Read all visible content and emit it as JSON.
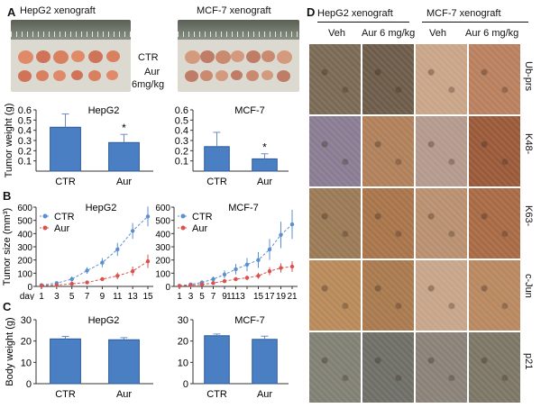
{
  "panel_a": {
    "letter": "A",
    "photo_left_title": "HepG2 xenograft",
    "photo_right_title": "MCF-7 xenograft",
    "row_label_ctr": "CTR",
    "row_label_aur_1": "Aur",
    "row_label_aur_2": "6mg/kg"
  },
  "panel_b": {
    "letter": "B"
  },
  "panel_c": {
    "letter": "C"
  },
  "panel_d": {
    "letter": "D",
    "group1": "HepG2 xenograft",
    "group2": "MCF-7 xenograft",
    "columns": [
      "Veh",
      "Aur 6 mg/kg",
      "Veh",
      "Aur 6 mg/kg"
    ],
    "rows": [
      "Ub-prs",
      "K48-",
      "K63-",
      "c-Jun",
      "p21"
    ]
  },
  "chart_data": [
    {
      "type": "bar",
      "title": "HepG2",
      "ylabel": "Tumor weight (g)",
      "categories": [
        "CTR",
        "Aur"
      ],
      "values": [
        0.43,
        0.28
      ],
      "errors": [
        0.13,
        0.08
      ],
      "annotations": [
        "",
        "*"
      ],
      "ylim": [
        0,
        0.6
      ],
      "yticks": [
        "0.1",
        "0.2",
        "0.3",
        "0.4",
        "0.5",
        "0.6"
      ]
    },
    {
      "type": "bar",
      "title": "MCF-7",
      "ylabel": "",
      "categories": [
        "CTR",
        "Aur"
      ],
      "values": [
        0.24,
        0.12
      ],
      "errors": [
        0.14,
        0.05
      ],
      "annotations": [
        "",
        "*"
      ],
      "ylim": [
        0,
        0.6
      ],
      "yticks": [
        "0.1",
        "0.2",
        "0.3",
        "0.4",
        "0.5",
        "0.6"
      ]
    },
    {
      "type": "line",
      "title": "HepG2",
      "ylabel": "Tumor size (mm³)",
      "xlabel_prefix": "day",
      "x": [
        1,
        3,
        5,
        7,
        9,
        11,
        13,
        15
      ],
      "ylim": [
        0,
        600
      ],
      "yticks": [
        "0",
        "100",
        "200",
        "300",
        "400",
        "500",
        "600"
      ],
      "series": [
        {
          "name": "CTR",
          "values": [
            10,
            25,
            55,
            120,
            180,
            280,
            420,
            530
          ],
          "errors": [
            5,
            10,
            20,
            25,
            35,
            50,
            60,
            75
          ]
        },
        {
          "name": "Aur",
          "values": [
            5,
            10,
            20,
            30,
            55,
            80,
            115,
            190
          ],
          "errors": [
            3,
            5,
            8,
            10,
            15,
            25,
            35,
            50
          ]
        }
      ]
    },
    {
      "type": "line",
      "title": "MCF-7",
      "ylabel": "",
      "xlabel_prefix": "",
      "x": [
        1,
        3,
        5,
        7,
        9,
        11,
        13,
        15,
        17,
        19,
        21
      ],
      "xticklabels": [
        "1",
        "3",
        "5",
        "7",
        "9",
        "1113",
        "",
        "15",
        "17",
        "19",
        "21"
      ],
      "ylim": [
        0,
        600
      ],
      "yticks": [
        "0",
        "100",
        "200",
        "300",
        "400",
        "500",
        "600"
      ],
      "series": [
        {
          "name": "CTR",
          "values": [
            5,
            15,
            30,
            55,
            90,
            130,
            165,
            200,
            280,
            390,
            470
          ],
          "errors": [
            3,
            5,
            10,
            20,
            30,
            40,
            50,
            60,
            80,
            100,
            110
          ]
        },
        {
          "name": "Aur",
          "values": [
            3,
            8,
            15,
            25,
            40,
            55,
            65,
            80,
            115,
            140,
            150
          ],
          "errors": [
            2,
            4,
            6,
            8,
            12,
            15,
            18,
            22,
            30,
            35,
            40
          ]
        }
      ]
    },
    {
      "type": "bar",
      "title": "HepG2",
      "ylabel": "Body weight (g)",
      "categories": [
        "CTR",
        "Aur"
      ],
      "values": [
        21,
        20.6
      ],
      "errors": [
        1.2,
        1.0
      ],
      "ylim": [
        0,
        30
      ],
      "yticks": [
        "0",
        "10",
        "20",
        "30"
      ]
    },
    {
      "type": "bar",
      "title": "MCF-7",
      "ylabel": "",
      "categories": [
        "CTR",
        "Aur"
      ],
      "values": [
        22.5,
        20.8
      ],
      "errors": [
        0.8,
        1.5
      ],
      "ylim": [
        0,
        30
      ],
      "yticks": [
        "0",
        "10",
        "20",
        "30"
      ]
    }
  ]
}
